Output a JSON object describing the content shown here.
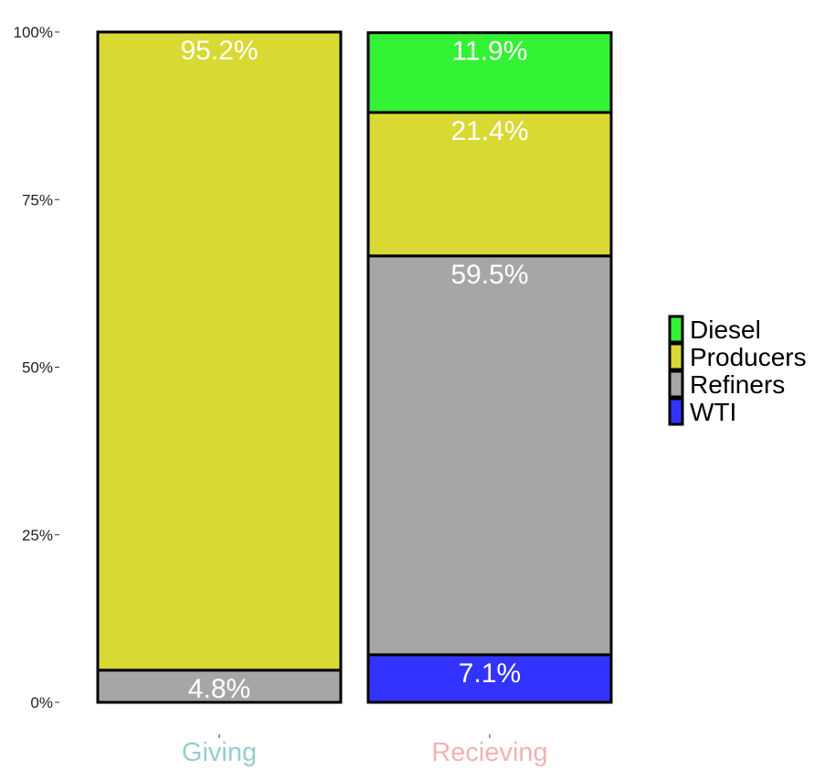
{
  "chart_data": {
    "type": "bar",
    "stacked": true,
    "percent": true,
    "categories": [
      "Giving",
      "Recieving"
    ],
    "category_colors": [
      "#99cccc",
      "#f2b3b3"
    ],
    "yticks": [
      "0%",
      "25%",
      "50%",
      "75%",
      "100%"
    ],
    "ylim": [
      0,
      100
    ],
    "grid": false,
    "legend_position": "right",
    "series": [
      {
        "name": "WTI",
        "color": "#3333ff",
        "values": [
          0,
          7.1
        ],
        "labels": [
          "",
          "7.1%"
        ]
      },
      {
        "name": "Refiners",
        "color": "#a6a6a6",
        "values": [
          4.8,
          59.5
        ],
        "labels": [
          "4.8%",
          "59.5%"
        ]
      },
      {
        "name": "Producers",
        "color": "#d9d933",
        "values": [
          95.2,
          21.4
        ],
        "labels": [
          "95.2%",
          "21.4%"
        ]
      },
      {
        "name": "Diesel",
        "color": "#33f233",
        "values": [
          0,
          11.9
        ],
        "labels": [
          "",
          "11.9%"
        ]
      }
    ],
    "legend_order": [
      "Diesel",
      "Producers",
      "Refiners",
      "WTI"
    ]
  }
}
